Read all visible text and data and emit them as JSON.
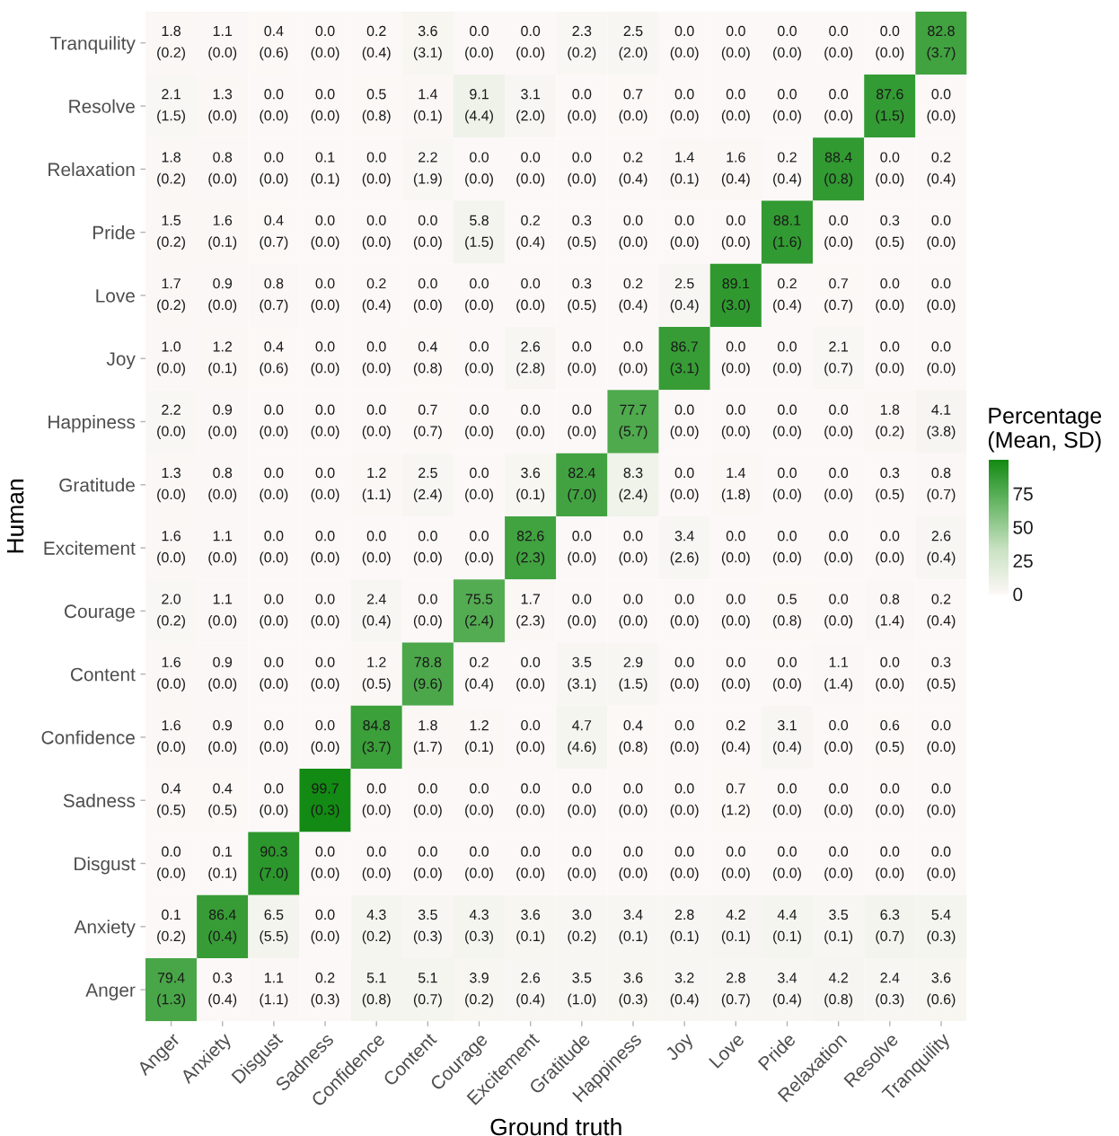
{
  "chart_data": {
    "type": "heatmap",
    "xlabel": "Ground truth",
    "ylabel": "Human",
    "clabel": "Percentage\n(Mean, SD)",
    "categories": [
      "Anger",
      "Anxiety",
      "Disgust",
      "Sadness",
      "Confidence",
      "Content",
      "Courage",
      "Excitement",
      "Gratitude",
      "Happiness",
      "Joy",
      "Love",
      "Pride",
      "Relaxation",
      "Resolve",
      "Tranquility"
    ],
    "y_categories": [
      "Tranquility",
      "Resolve",
      "Relaxation",
      "Pride",
      "Love",
      "Joy",
      "Happiness",
      "Gratitude",
      "Excitement",
      "Courage",
      "Content",
      "Confidence",
      "Sadness",
      "Disgust",
      "Anxiety",
      "Anger"
    ],
    "cells": [
      [
        1.8,
        1.1,
        0.4,
        0.0,
        0.2,
        3.6,
        0.0,
        0.0,
        2.3,
        2.5,
        0.0,
        0.0,
        0.0,
        0.0,
        0.0,
        82.8
      ],
      [
        2.1,
        1.3,
        0.0,
        0.0,
        0.5,
        1.4,
        9.1,
        3.1,
        0.0,
        0.7,
        0.0,
        0.0,
        0.0,
        0.0,
        87.6,
        0.0
      ],
      [
        1.8,
        0.8,
        0.0,
        0.1,
        0.0,
        2.2,
        0.0,
        0.0,
        0.0,
        0.2,
        1.4,
        1.6,
        0.2,
        88.4,
        0.0,
        0.2
      ],
      [
        1.5,
        1.6,
        0.4,
        0.0,
        0.0,
        0.0,
        5.8,
        0.2,
        0.3,
        0.0,
        0.0,
        0.0,
        88.1,
        0.0,
        0.3,
        0.0
      ],
      [
        1.7,
        0.9,
        0.8,
        0.0,
        0.2,
        0.0,
        0.0,
        0.0,
        0.3,
        0.2,
        2.5,
        89.1,
        0.2,
        0.7,
        0.0,
        0.0
      ],
      [
        1.0,
        1.2,
        0.4,
        0.0,
        0.0,
        0.4,
        0.0,
        2.6,
        0.0,
        0.0,
        86.7,
        0.0,
        0.0,
        2.1,
        0.0,
        0.0
      ],
      [
        2.2,
        0.9,
        0.0,
        0.0,
        0.0,
        0.7,
        0.0,
        0.0,
        0.0,
        77.7,
        0.0,
        0.0,
        0.0,
        0.0,
        1.8,
        4.1
      ],
      [
        1.3,
        0.8,
        0.0,
        0.0,
        1.2,
        2.5,
        0.0,
        3.6,
        82.4,
        8.3,
        0.0,
        1.4,
        0.0,
        0.0,
        0.3,
        0.8
      ],
      [
        1.6,
        1.1,
        0.0,
        0.0,
        0.0,
        0.0,
        0.0,
        82.6,
        0.0,
        0.0,
        3.4,
        0.0,
        0.0,
        0.0,
        0.0,
        2.6
      ],
      [
        2.0,
        1.1,
        0.0,
        0.0,
        2.4,
        0.0,
        75.5,
        1.7,
        0.0,
        0.0,
        0.0,
        0.0,
        0.5,
        0.0,
        0.8,
        0.2
      ],
      [
        1.6,
        0.9,
        0.0,
        0.0,
        1.2,
        78.8,
        0.2,
        0.0,
        3.5,
        2.9,
        0.0,
        0.0,
        0.0,
        1.1,
        0.0,
        0.3
      ],
      [
        1.6,
        0.9,
        0.0,
        0.0,
        84.8,
        1.8,
        1.2,
        0.0,
        4.7,
        0.4,
        0.0,
        0.2,
        3.1,
        0.0,
        0.6,
        0.0
      ],
      [
        0.4,
        0.4,
        0.0,
        99.7,
        0.0,
        0.0,
        0.0,
        0.0,
        0.0,
        0.0,
        0.0,
        0.7,
        0.0,
        0.0,
        0.0,
        0.0
      ],
      [
        0.0,
        0.1,
        90.3,
        0.0,
        0.0,
        0.0,
        0.0,
        0.0,
        0.0,
        0.0,
        0.0,
        0.0,
        0.0,
        0.0,
        0.0,
        0.0
      ],
      [
        0.1,
        86.4,
        6.5,
        0.0,
        4.3,
        3.5,
        4.3,
        3.6,
        3.0,
        3.4,
        2.8,
        4.2,
        4.4,
        3.5,
        6.3,
        5.4
      ],
      [
        79.4,
        0.3,
        1.1,
        0.2,
        5.1,
        5.1,
        3.9,
        2.6,
        3.5,
        3.6,
        3.2,
        2.8,
        3.4,
        4.2,
        2.4,
        3.6
      ]
    ],
    "cell_labels": [
      [
        "1.8\n(0.2)",
        "1.1\n(0.0)",
        "0.4\n(0.6)",
        "0.0\n(0.0)",
        "0.2\n(0.4)",
        "3.6\n(3.1)",
        "0.0\n(0.0)",
        "0.0\n(0.0)",
        "2.3\n(0.2)",
        "2.5\n(2.0)",
        "0.0\n(0.0)",
        "0.0\n(0.0)",
        "0.0\n(0.0)",
        "0.0\n(0.0)",
        "0.0\n(0.0)",
        "82.8\n(3.7)"
      ],
      [
        "2.1\n(1.5)",
        "1.3\n(0.0)",
        "0.0\n(0.0)",
        "0.0\n(0.0)",
        "0.5\n(0.8)",
        "1.4\n(0.1)",
        "9.1\n(4.4)",
        "3.1\n(2.0)",
        "0.0\n(0.0)",
        "0.7\n(0.0)",
        "0.0\n(0.0)",
        "0.0\n(0.0)",
        "0.0\n(0.0)",
        "0.0\n(0.0)",
        "87.6\n(1.5)",
        "0.0\n(0.0)"
      ],
      [
        "1.8\n(0.2)",
        "0.8\n(0.0)",
        "0.0\n(0.0)",
        "0.1\n(0.1)",
        "0.0\n(0.0)",
        "2.2\n(1.9)",
        "0.0\n(0.0)",
        "0.0\n(0.0)",
        "0.0\n(0.0)",
        "0.2\n(0.4)",
        "1.4\n(0.1)",
        "1.6\n(0.4)",
        "0.2\n(0.4)",
        "88.4\n(0.8)",
        "0.0\n(0.0)",
        "0.2\n(0.4)"
      ],
      [
        "1.5\n(0.2)",
        "1.6\n(0.1)",
        "0.4\n(0.7)",
        "0.0\n(0.0)",
        "0.0\n(0.0)",
        "0.0\n(0.0)",
        "5.8\n(1.5)",
        "0.2\n(0.4)",
        "0.3\n(0.5)",
        "0.0\n(0.0)",
        "0.0\n(0.0)",
        "0.0\n(0.0)",
        "88.1\n(1.6)",
        "0.0\n(0.0)",
        "0.3\n(0.5)",
        "0.0\n(0.0)"
      ],
      [
        "1.7\n(0.2)",
        "0.9\n(0.0)",
        "0.8\n(0.7)",
        "0.0\n(0.0)",
        "0.2\n(0.4)",
        "0.0\n(0.0)",
        "0.0\n(0.0)",
        "0.0\n(0.0)",
        "0.3\n(0.5)",
        "0.2\n(0.4)",
        "2.5\n(0.4)",
        "89.1\n(3.0)",
        "0.2\n(0.4)",
        "0.7\n(0.7)",
        "0.0\n(0.0)",
        "0.0\n(0.0)"
      ],
      [
        "1.0\n(0.0)",
        "1.2\n(0.1)",
        "0.4\n(0.6)",
        "0.0\n(0.0)",
        "0.0\n(0.0)",
        "0.4\n(0.8)",
        "0.0\n(0.0)",
        "2.6\n(2.8)",
        "0.0\n(0.0)",
        "0.0\n(0.0)",
        "86.7\n(3.1)",
        "0.0\n(0.0)",
        "0.0\n(0.0)",
        "2.1\n(0.7)",
        "0.0\n(0.0)",
        "0.0\n(0.0)"
      ],
      [
        "2.2\n(0.0)",
        "0.9\n(0.0)",
        "0.0\n(0.0)",
        "0.0\n(0.0)",
        "0.0\n(0.0)",
        "0.7\n(0.7)",
        "0.0\n(0.0)",
        "0.0\n(0.0)",
        "0.0\n(0.0)",
        "77.7\n(5.7)",
        "0.0\n(0.0)",
        "0.0\n(0.0)",
        "0.0\n(0.0)",
        "0.0\n(0.0)",
        "1.8\n(0.2)",
        "4.1\n(3.8)"
      ],
      [
        "1.3\n(0.0)",
        "0.8\n(0.0)",
        "0.0\n(0.0)",
        "0.0\n(0.0)",
        "1.2\n(1.1)",
        "2.5\n(2.4)",
        "0.0\n(0.0)",
        "3.6\n(0.1)",
        "82.4\n(7.0)",
        "8.3\n(2.4)",
        "0.0\n(0.0)",
        "1.4\n(1.8)",
        "0.0\n(0.0)",
        "0.0\n(0.0)",
        "0.3\n(0.5)",
        "0.8\n(0.7)"
      ],
      [
        "1.6\n(0.0)",
        "1.1\n(0.0)",
        "0.0\n(0.0)",
        "0.0\n(0.0)",
        "0.0\n(0.0)",
        "0.0\n(0.0)",
        "0.0\n(0.0)",
        "82.6\n(2.3)",
        "0.0\n(0.0)",
        "0.0\n(0.0)",
        "3.4\n(2.6)",
        "0.0\n(0.0)",
        "0.0\n(0.0)",
        "0.0\n(0.0)",
        "0.0\n(0.0)",
        "2.6\n(0.4)"
      ],
      [
        "2.0\n(0.2)",
        "1.1\n(0.0)",
        "0.0\n(0.0)",
        "0.0\n(0.0)",
        "2.4\n(0.4)",
        "0.0\n(0.0)",
        "75.5\n(2.4)",
        "1.7\n(2.3)",
        "0.0\n(0.0)",
        "0.0\n(0.0)",
        "0.0\n(0.0)",
        "0.0\n(0.0)",
        "0.5\n(0.8)",
        "0.0\n(0.0)",
        "0.8\n(1.4)",
        "0.2\n(0.4)"
      ],
      [
        "1.6\n(0.0)",
        "0.9\n(0.0)",
        "0.0\n(0.0)",
        "0.0\n(0.0)",
        "1.2\n(0.5)",
        "78.8\n(9.6)",
        "0.2\n(0.4)",
        "0.0\n(0.0)",
        "3.5\n(3.1)",
        "2.9\n(1.5)",
        "0.0\n(0.0)",
        "0.0\n(0.0)",
        "0.0\n(0.0)",
        "1.1\n(1.4)",
        "0.0\n(0.0)",
        "0.3\n(0.5)"
      ],
      [
        "1.6\n(0.0)",
        "0.9\n(0.0)",
        "0.0\n(0.0)",
        "0.0\n(0.0)",
        "84.8\n(3.7)",
        "1.8\n(1.7)",
        "1.2\n(0.1)",
        "0.0\n(0.0)",
        "4.7\n(4.6)",
        "0.4\n(0.8)",
        "0.0\n(0.0)",
        "0.2\n(0.4)",
        "3.1\n(0.4)",
        "0.0\n(0.0)",
        "0.6\n(0.5)",
        "0.0\n(0.0)"
      ],
      [
        "0.4\n(0.5)",
        "0.4\n(0.5)",
        "0.0\n(0.0)",
        "99.7\n(0.3)",
        "0.0\n(0.0)",
        "0.0\n(0.0)",
        "0.0\n(0.0)",
        "0.0\n(0.0)",
        "0.0\n(0.0)",
        "0.0\n(0.0)",
        "0.0\n(0.0)",
        "0.7\n(1.2)",
        "0.0\n(0.0)",
        "0.0\n(0.0)",
        "0.0\n(0.0)",
        "0.0\n(0.0)"
      ],
      [
        "0.0\n(0.0)",
        "0.1\n(0.1)",
        "90.3\n(7.0)",
        "0.0\n(0.0)",
        "0.0\n(0.0)",
        "0.0\n(0.0)",
        "0.0\n(0.0)",
        "0.0\n(0.0)",
        "0.0\n(0.0)",
        "0.0\n(0.0)",
        "0.0\n(0.0)",
        "0.0\n(0.0)",
        "0.0\n(0.0)",
        "0.0\n(0.0)",
        "0.0\n(0.0)",
        "0.0\n(0.0)"
      ],
      [
        "0.1\n(0.2)",
        "86.4\n(0.4)",
        "6.5\n(5.5)",
        "0.0\n(0.0)",
        "4.3\n(0.2)",
        "3.5\n(0.3)",
        "4.3\n(0.3)",
        "3.6\n(0.1)",
        "3.0\n(0.2)",
        "3.4\n(0.1)",
        "2.8\n(0.1)",
        "4.2\n(0.1)",
        "4.4\n(0.1)",
        "3.5\n(0.1)",
        "6.3\n(0.7)",
        "5.4\n(0.3)"
      ],
      [
        "79.4\n(1.3)",
        "0.3\n(0.4)",
        "1.1\n(1.1)",
        "0.2\n(0.3)",
        "5.1\n(0.8)",
        "5.1\n(0.7)",
        "3.9\n(0.2)",
        "2.6\n(0.4)",
        "3.5\n(1.0)",
        "3.6\n(0.3)",
        "3.2\n(0.4)",
        "2.8\n(0.7)",
        "3.4\n(0.4)",
        "4.2\n(0.8)",
        "2.4\n(0.3)",
        "3.6\n(0.6)"
      ]
    ],
    "clim": [
      0,
      100
    ],
    "cticks": [
      0,
      25,
      50,
      75
    ]
  }
}
